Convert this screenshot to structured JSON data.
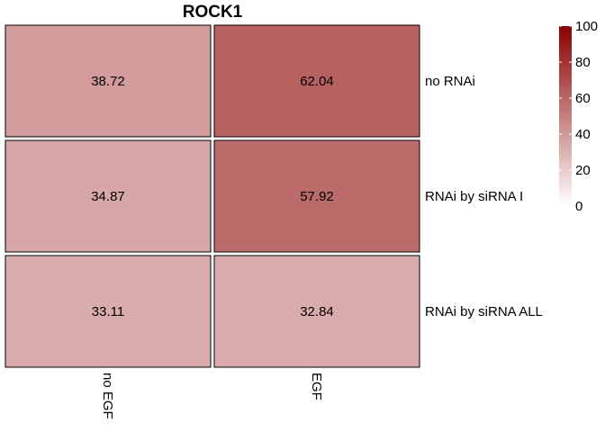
{
  "chart_data": {
    "type": "heatmap",
    "title": "ROCK1",
    "columns": [
      "no EGF",
      "EGF"
    ],
    "rows": [
      "no RNAi",
      "RNAi by siRNA I",
      "RNAi by siRNA ALL"
    ],
    "values": [
      [
        38.72,
        62.04
      ],
      [
        34.87,
        57.92
      ],
      [
        33.11,
        32.84
      ]
    ],
    "value_labels": [
      [
        "38.72",
        "62.04"
      ],
      [
        "34.87",
        "57.92"
      ],
      [
        "33.11",
        "32.84"
      ]
    ],
    "colorbar": {
      "min": 0,
      "max": 100,
      "ticks": [
        0,
        20,
        40,
        60,
        80,
        100
      ],
      "low_color": "#ffffff",
      "high_color": "#8b0000"
    },
    "grid": false,
    "legend_position": "top-right"
  }
}
